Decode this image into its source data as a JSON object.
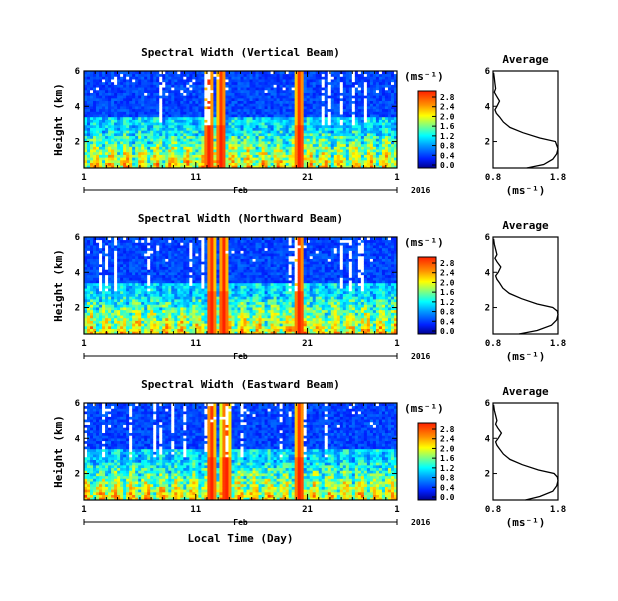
{
  "chart_data": [
    {
      "type": "heatmap",
      "title": "Spectral Width (Vertical Beam)",
      "ylabel": "Height (km)",
      "yticks": [
        2,
        4,
        6
      ],
      "ylim": [
        0.5,
        6
      ],
      "xticks": [
        "1",
        "11",
        "21",
        "1"
      ],
      "xlim": [
        1,
        29
      ],
      "colorbar_unit": "(ms⁻¹)",
      "colorbar_ticks": [
        "0.0",
        "0.4",
        "0.8",
        "1.2",
        "1.6",
        "2.0",
        "2.4",
        "2.8"
      ],
      "zlim": [
        0,
        2.8
      ],
      "month": "Feb",
      "year": "2016",
      "intense_bands": [
        12.2,
        13.3,
        20.3
      ],
      "profile": {
        "title": "Average",
        "xlabel": "(ms⁻¹)",
        "xticks": [
          "0.8",
          "1.8"
        ],
        "xlim": [
          0.8,
          1.8
        ],
        "ylim": [
          0.5,
          6
        ],
        "yticks": [
          "2",
          "4",
          "6"
        ],
        "height": [
          0.5,
          0.7,
          1.0,
          1.3,
          1.6,
          1.8,
          2.0,
          2.2,
          2.5,
          2.8,
          3.1,
          3.4,
          3.6,
          3.8,
          4.0,
          4.3,
          4.6,
          4.8,
          5.0,
          5.3,
          5.6,
          5.9
        ],
        "value": [
          1.32,
          1.58,
          1.72,
          1.78,
          1.8,
          1.78,
          1.76,
          1.52,
          1.26,
          1.06,
          0.96,
          0.9,
          0.85,
          0.83,
          0.86,
          0.9,
          0.85,
          0.82,
          0.84,
          0.83,
          0.82,
          0.81
        ]
      }
    },
    {
      "type": "heatmap",
      "title": "Spectral Width (Northward Beam)",
      "ylabel": "Height (km)",
      "yticks": [
        2,
        4,
        6
      ],
      "ylim": [
        0.5,
        6
      ],
      "xticks": [
        "1",
        "11",
        "21",
        "1"
      ],
      "xlim": [
        1,
        29
      ],
      "colorbar_unit": "(ms⁻¹)",
      "colorbar_ticks": [
        "0.0",
        "0.4",
        "0.8",
        "1.2",
        "1.6",
        "2.0",
        "2.4",
        "2.8"
      ],
      "zlim": [
        0,
        2.8
      ],
      "month": "Feb",
      "year": "2016",
      "intense_bands": [
        12.4,
        13.5,
        20.3
      ],
      "profile": {
        "title": "Average",
        "xlabel": "(ms⁻¹)",
        "xticks": [
          "0.8",
          "1.8"
        ],
        "xlim": [
          0.8,
          1.8
        ],
        "ylim": [
          0.5,
          6
        ],
        "yticks": [
          "2",
          "4",
          "6"
        ],
        "height": [
          0.5,
          0.7,
          1.0,
          1.3,
          1.6,
          1.8,
          2.0,
          2.2,
          2.5,
          2.8,
          3.1,
          3.4,
          3.6,
          3.8,
          4.0,
          4.3,
          4.6,
          4.8,
          5.0,
          5.3,
          5.6,
          5.9
        ],
        "value": [
          1.2,
          1.48,
          1.7,
          1.78,
          1.8,
          1.79,
          1.72,
          1.48,
          1.24,
          1.05,
          0.95,
          0.9,
          0.86,
          0.84,
          0.88,
          0.92,
          0.86,
          0.83,
          0.86,
          0.84,
          0.82,
          0.81
        ]
      }
    },
    {
      "type": "heatmap",
      "title": "Spectral Width (Eastward Beam)",
      "ylabel": "Height (km)",
      "yticks": [
        2,
        4,
        6
      ],
      "ylim": [
        0.5,
        6
      ],
      "xticks": [
        "1",
        "11",
        "21",
        "1"
      ],
      "xlim": [
        1,
        29
      ],
      "colorbar_unit": "(ms⁻¹)",
      "colorbar_ticks": [
        "0.0",
        "0.4",
        "0.8",
        "1.2",
        "1.6",
        "2.0",
        "2.4",
        "2.8"
      ],
      "zlim": [
        0,
        2.8
      ],
      "month": "Feb",
      "year": "2016",
      "xlabel": "Local Time (Day)",
      "intense_bands": [
        12.4,
        13.7,
        20.3
      ],
      "profile": {
        "title": "Average",
        "xlabel": "(ms⁻¹)",
        "xticks": [
          "0.8",
          "1.8"
        ],
        "xlim": [
          0.8,
          1.8
        ],
        "ylim": [
          0.5,
          6
        ],
        "yticks": [
          "2",
          "4",
          "6"
        ],
        "height": [
          0.5,
          0.7,
          1.0,
          1.3,
          1.6,
          1.8,
          2.0,
          2.2,
          2.5,
          2.8,
          3.1,
          3.4,
          3.6,
          3.8,
          4.0,
          4.3,
          4.6,
          4.8,
          5.0,
          5.3,
          5.6,
          5.9
        ],
        "value": [
          1.3,
          1.52,
          1.72,
          1.78,
          1.8,
          1.79,
          1.74,
          1.5,
          1.25,
          1.06,
          0.96,
          0.9,
          0.86,
          0.84,
          0.88,
          0.93,
          0.87,
          0.84,
          0.86,
          0.84,
          0.82,
          0.81
        ]
      }
    }
  ]
}
